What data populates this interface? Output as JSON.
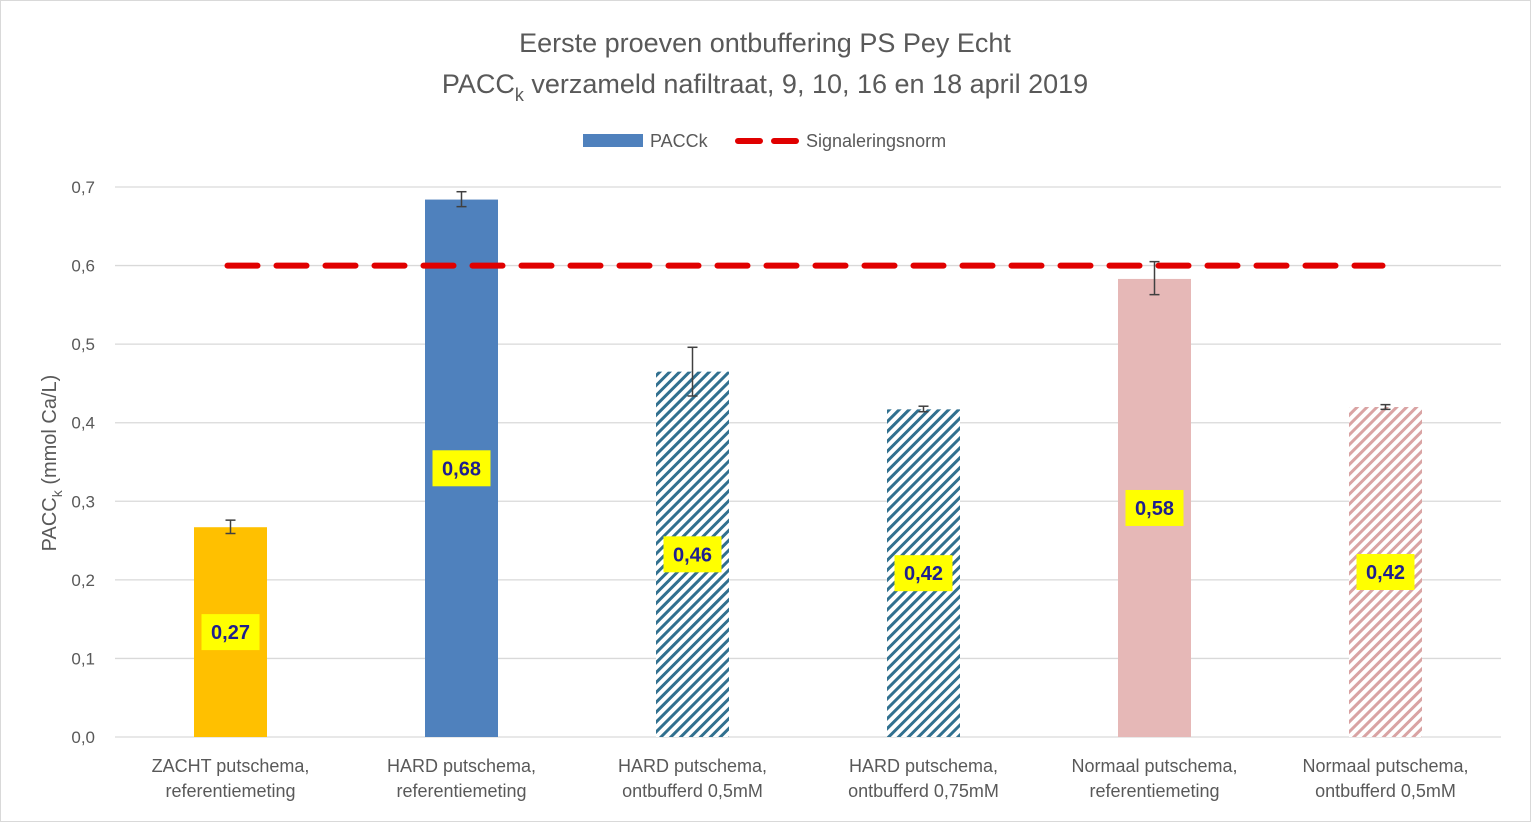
{
  "chart_data": {
    "type": "bar",
    "title_line1": "Eerste proeven ontbuffering PS Pey Echt",
    "title_line2_prefix": "PACC",
    "title_line2_sub": "k",
    "title_line2_suffix": " verzameld nafiltraat, 9, 10, 16 en 18 april 2019",
    "ylabel_prefix": "PACC",
    "ylabel_sub": "k",
    "ylabel_suffix": " (mmol Ca/L)",
    "xlabel": "",
    "ylim": [
      0,
      0.7
    ],
    "yticks": [
      0.0,
      0.1,
      0.2,
      0.3,
      0.4,
      0.5,
      0.6,
      0.7
    ],
    "ytick_labels": [
      "0,0",
      "0,1",
      "0,2",
      "0,3",
      "0,4",
      "0,5",
      "0,6",
      "0,7"
    ],
    "grid": true,
    "legend_position": "top-center",
    "legend": [
      {
        "name": "PACCk",
        "kind": "bar",
        "color": "#4f81bd"
      },
      {
        "name": "Signaleringsnorm",
        "kind": "dashed-line",
        "color": "#e00000"
      }
    ],
    "categories": [
      [
        "ZACHT putschema,",
        "referentiemeting"
      ],
      [
        "HARD putschema,",
        "referentiemeting"
      ],
      [
        "HARD putschema,",
        "ontbufferd 0,5mM"
      ],
      [
        "HARD putschema,",
        "ontbufferd 0,75mM"
      ],
      [
        "Normaal putschema,",
        "referentiemeting"
      ],
      [
        "Normaal putschema,",
        "ontbufferd 0,5mM"
      ]
    ],
    "series": [
      {
        "name": "PACCk",
        "values": [
          0.267,
          0.684,
          0.465,
          0.417,
          0.583,
          0.42
        ],
        "data_labels": [
          "0,27",
          "0,68",
          "0,46",
          "0,42",
          "0,58",
          "0,42"
        ],
        "error_low": [
          0.259,
          0.675,
          0.434,
          0.414,
          0.563,
          0.417
        ],
        "error_high": [
          0.276,
          0.694,
          0.496,
          0.421,
          0.605,
          0.423
        ],
        "fills": [
          {
            "style": "solid",
            "color": "#ffc000"
          },
          {
            "style": "solid",
            "color": "#4f81bd"
          },
          {
            "style": "hatch",
            "color": "#31708f"
          },
          {
            "style": "hatch",
            "color": "#31708f"
          },
          {
            "style": "solid",
            "color": "#e6b8b7"
          },
          {
            "style": "hatch",
            "color": "#d9a3a3"
          }
        ]
      },
      {
        "name": "Signaleringsnorm",
        "type": "line",
        "value": 0.6,
        "color": "#e00000"
      }
    ],
    "data_label_bg": "#ffff00",
    "data_label_color": "#1f1f8f"
  }
}
